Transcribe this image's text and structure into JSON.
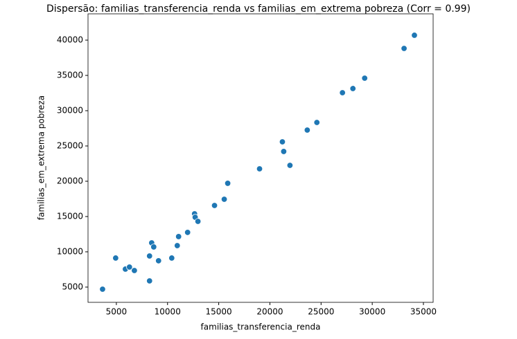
{
  "chart_data": {
    "type": "scatter",
    "title": "Dispersão: familias_transferencia_renda vs familias_em_extrema pobreza (Corr = 0.99)",
    "x_label": "familias_transferencia_renda",
    "y_label": "familias_em_extrema pobreza",
    "color": "#1f77b4",
    "x": [
      3650,
      4930,
      5880,
      6280,
      6760,
      8240,
      8240,
      8450,
      8650,
      9120,
      10410,
      10950,
      11080,
      11960,
      12640,
      12700,
      12970,
      14590,
      15540,
      15880,
      18990,
      21220,
      21350,
      21960,
      23650,
      24590,
      27090,
      28110,
      29260,
      33110,
      34120
    ],
    "values": [
      4700,
      9120,
      7550,
      7840,
      7350,
      5880,
      9410,
      11270,
      10690,
      8730,
      9120,
      10880,
      12160,
      12750,
      15390,
      14900,
      14310,
      16570,
      17450,
      19710,
      21760,
      25590,
      24220,
      22250,
      27250,
      28330,
      32550,
      33140,
      34610,
      38820,
      40690
    ],
    "xlim": [
      2230,
      35950
    ],
    "ylim": [
      2840,
      43725
    ],
    "xticks": [
      5000,
      10000,
      15000,
      20000,
      25000,
      30000,
      35000
    ],
    "yticks": [
      5000,
      10000,
      15000,
      20000,
      25000,
      30000,
      35000,
      40000
    ],
    "grid": false
  }
}
